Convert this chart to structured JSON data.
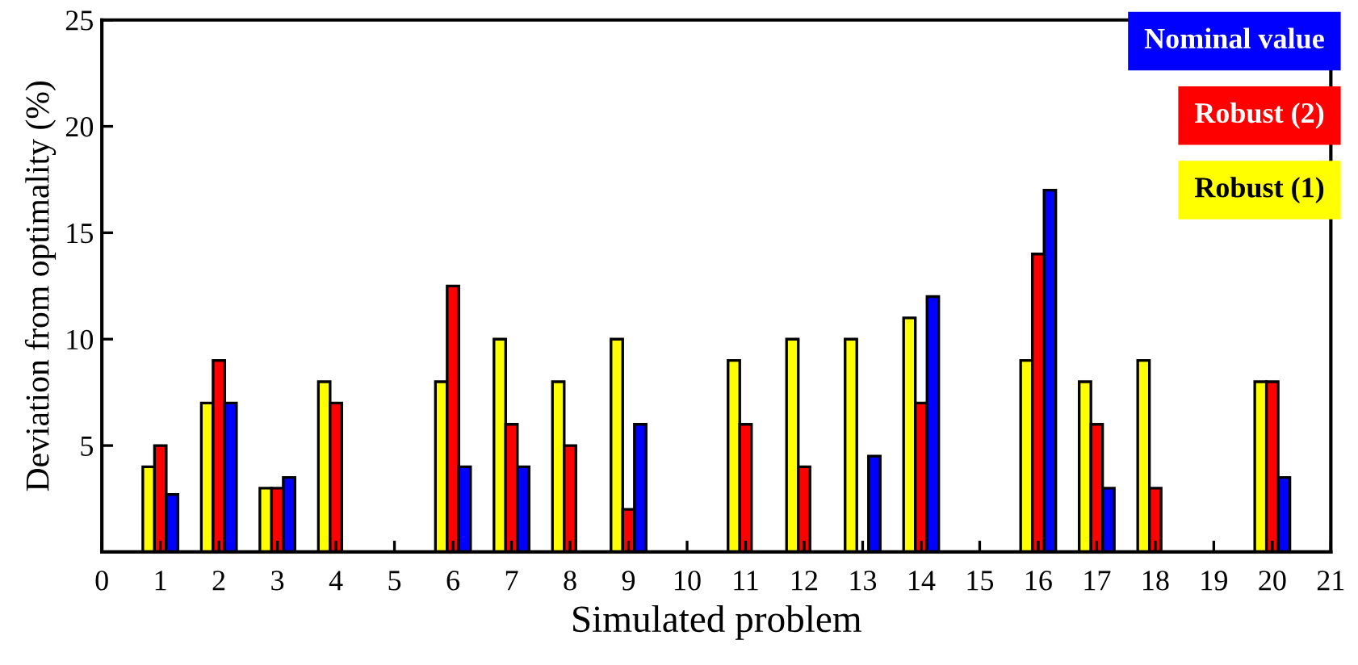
{
  "chart_data": {
    "type": "bar",
    "xlabel": "Simulated problem",
    "ylabel": "Deviation from optimality (%)",
    "x": [
      1,
      2,
      3,
      4,
      5,
      6,
      7,
      8,
      9,
      10,
      11,
      12,
      13,
      14,
      15,
      16,
      17,
      18,
      19,
      20
    ],
    "series": [
      {
        "name": "Robust (1)",
        "color": "#ffff00",
        "values": [
          4,
          7,
          3,
          8,
          null,
          8,
          10,
          8,
          10,
          null,
          9,
          10,
          10,
          11,
          null,
          9,
          8,
          9,
          null,
          8
        ]
      },
      {
        "name": "Robust (2)",
        "color": "#ff0000",
        "values": [
          5,
          9,
          3,
          7,
          null,
          12.5,
          6,
          5,
          2,
          null,
          6,
          4,
          null,
          7,
          null,
          14,
          6,
          3,
          null,
          8
        ]
      },
      {
        "name": "Nominal value",
        "color": "#0000ff",
        "values": [
          2.7,
          7,
          3.5,
          null,
          null,
          4,
          4,
          null,
          6,
          null,
          null,
          null,
          4.5,
          12,
          null,
          17,
          3,
          null,
          null,
          3.5
        ]
      }
    ],
    "xlim": [
      0,
      21
    ],
    "xticks": [
      0,
      1,
      2,
      3,
      4,
      5,
      6,
      7,
      8,
      9,
      10,
      11,
      12,
      13,
      14,
      15,
      16,
      17,
      18,
      19,
      20,
      21
    ],
    "ylim": [
      0,
      25
    ],
    "yticks": [
      5,
      10,
      15,
      20,
      25
    ],
    "grid": false,
    "legend": "top right"
  }
}
